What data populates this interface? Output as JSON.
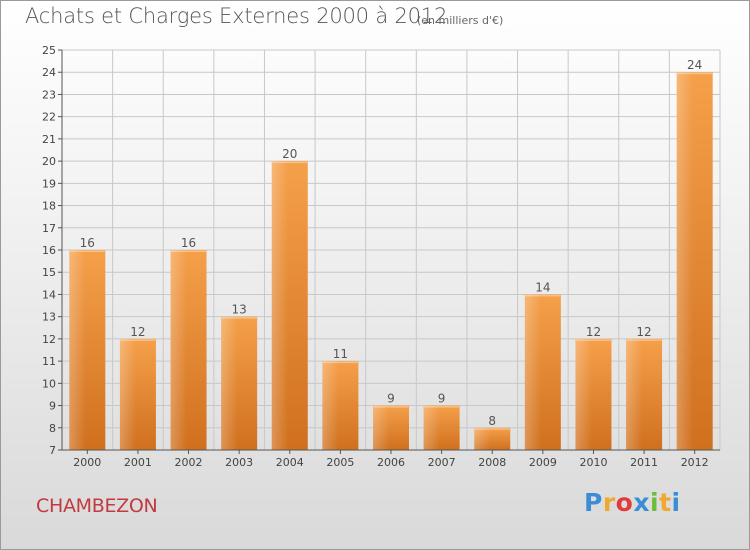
{
  "header": {
    "title": "Achats et Charges Externes 2000 à 2012",
    "subtitle": "(en milliers d'€)"
  },
  "footer": {
    "town": "CHAMBEZON",
    "logo_letters": [
      "P",
      "r",
      "o",
      "x",
      "i",
      "t",
      "i"
    ],
    "logo_colors": [
      "#3b8ed6",
      "#f0a830",
      "#e23b3b",
      "#3b8ed6",
      "#6abe3c",
      "#f0a830",
      "#3b8ed6"
    ]
  },
  "colors": {
    "bar_top": "#f5a04a",
    "bar_bottom": "#d0701e",
    "grid": "#c8c8c8",
    "axis": "#555555"
  },
  "chart_data": {
    "type": "bar",
    "title": "Achats et Charges Externes 2000 à 2012",
    "subtitle": "(en milliers d'€)",
    "categories": [
      "2000",
      "2001",
      "2002",
      "2003",
      "2004",
      "2005",
      "2006",
      "2007",
      "2008",
      "2009",
      "2010",
      "2011",
      "2012"
    ],
    "values": [
      16,
      12,
      16,
      13,
      20,
      11,
      9,
      9,
      8,
      14,
      12,
      12,
      24
    ],
    "ylim": [
      7,
      25
    ],
    "yticks": [
      7,
      8,
      9,
      10,
      11,
      12,
      13,
      14,
      15,
      16,
      17,
      18,
      19,
      20,
      21,
      22,
      23,
      24,
      25
    ],
    "grid": true,
    "data_labels": true
  }
}
